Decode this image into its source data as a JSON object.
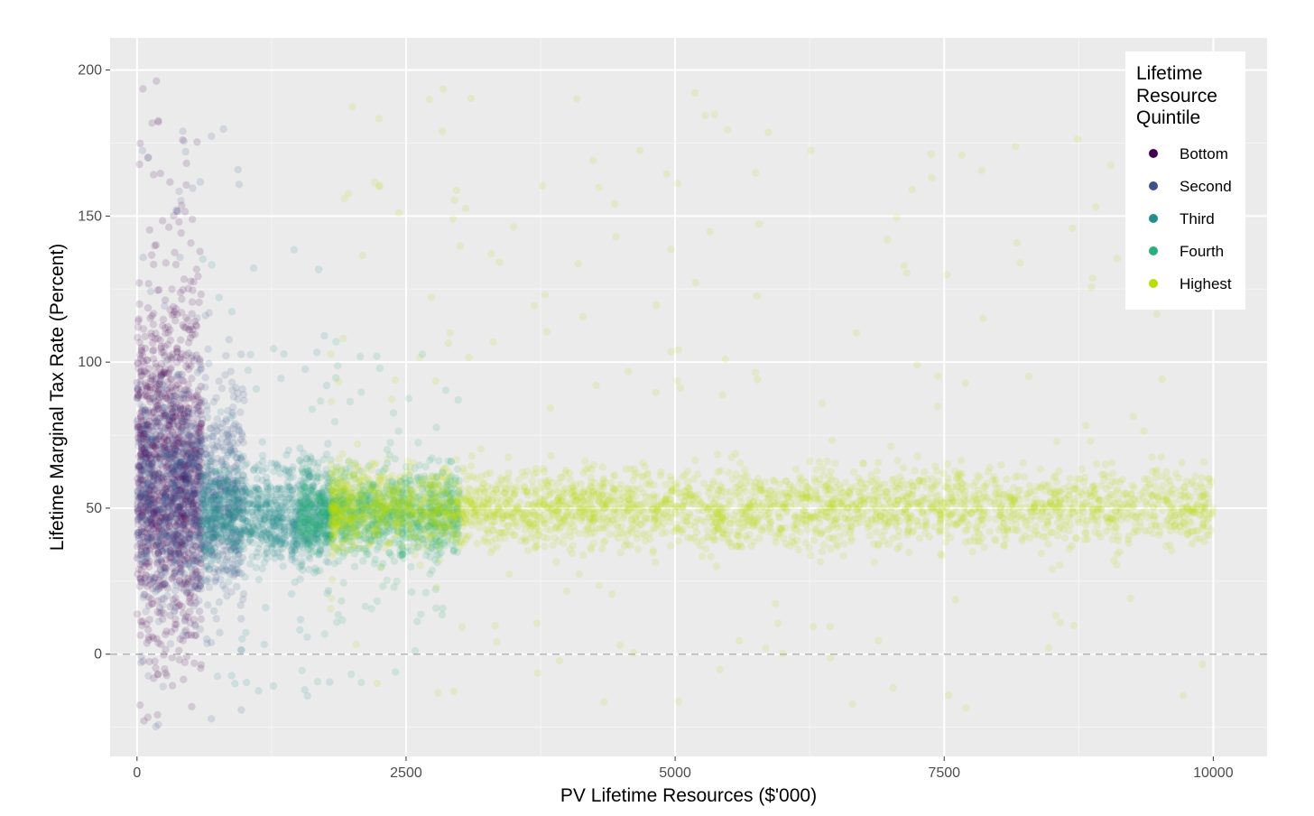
{
  "chart_data": {
    "type": "scatter",
    "title": "",
    "xlabel": "PV Lifetime Resources ($'000)",
    "ylabel": "Lifetime Marginal Tax Rate (Percent)",
    "xlim": [
      -250,
      10500
    ],
    "ylim": [
      -35,
      211
    ],
    "x_ticks": [
      0,
      2500,
      5000,
      7500,
      10000
    ],
    "y_ticks": [
      0,
      50,
      100,
      150,
      200
    ],
    "grid": true,
    "reference_line": {
      "y": 0,
      "style": "dashed"
    },
    "legend": {
      "title": [
        "Lifetime",
        "Resource",
        "Quintile"
      ],
      "placement": "top-right"
    },
    "series": [
      {
        "name": "Bottom",
        "color": "#440154",
        "x_range": [
          0,
          600
        ],
        "y_center": 60,
        "y_spread": 45,
        "y_min": -25,
        "y_max": 200
      },
      {
        "name": "Second",
        "color": "#3B528B",
        "x_range": [
          0,
          1000
        ],
        "y_center": 55,
        "y_spread": 30,
        "y_min": -25,
        "y_max": 180
      },
      {
        "name": "Third",
        "color": "#21908C",
        "x_range": [
          600,
          1800
        ],
        "y_center": 48,
        "y_spread": 14,
        "y_min": -15,
        "y_max": 140
      },
      {
        "name": "Fourth",
        "color": "#27B07A",
        "x_range": [
          1500,
          3000
        ],
        "y_center": 48,
        "y_spread": 12,
        "y_min": -12,
        "y_max": 110
      },
      {
        "name": "Highest",
        "color": "#B8DE0A",
        "x_range": [
          1800,
          10000
        ],
        "y_center": 50,
        "y_spread": 11,
        "y_min": -20,
        "y_max": 197
      }
    ]
  }
}
